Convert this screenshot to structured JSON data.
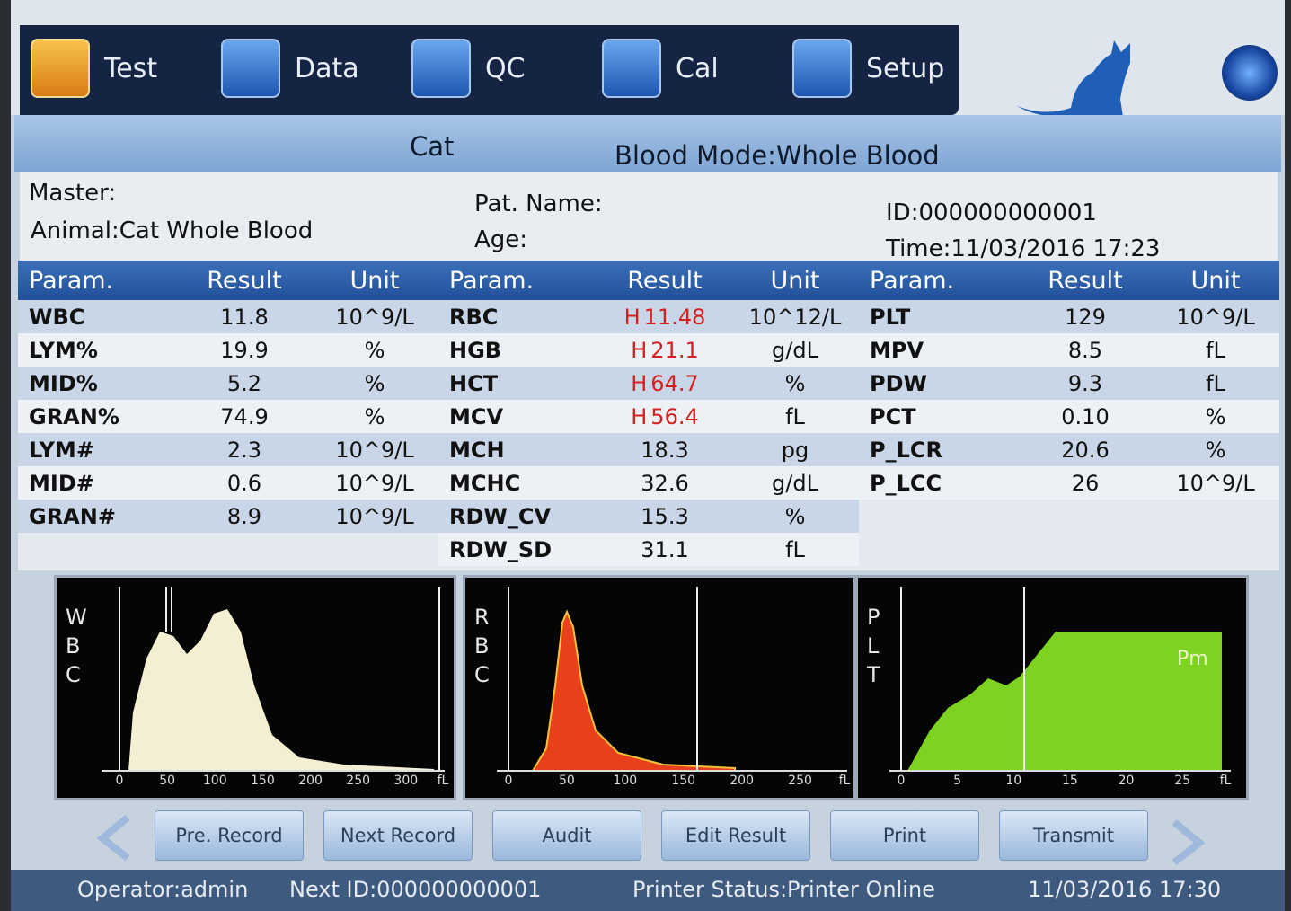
{
  "nav": [
    "Test",
    "Data",
    "QC",
    "Cal",
    "Setup"
  ],
  "header": {
    "species": "Cat",
    "mode": "Blood Mode:Whole Blood"
  },
  "info": {
    "master": "Master:",
    "animal": "Animal:Cat Whole Blood",
    "pat_name": "Pat. Name:",
    "age": "Age:",
    "id": "ID:000000000001",
    "time": "Time:11/03/2016 17:23"
  },
  "table": {
    "columns": [
      "Param.",
      "Result",
      "Unit"
    ],
    "groups": [
      [
        {
          "param": "WBC",
          "result": "11.8",
          "unit": "10^9/L"
        },
        {
          "param": "LYM%",
          "result": "19.9",
          "unit": "%"
        },
        {
          "param": "MID%",
          "result": "5.2",
          "unit": "%"
        },
        {
          "param": "GRAN%",
          "result": "74.9",
          "unit": "%"
        },
        {
          "param": "LYM#",
          "result": "2.3",
          "unit": "10^9/L"
        },
        {
          "param": "MID#",
          "result": "0.6",
          "unit": "10^9/L"
        },
        {
          "param": "GRAN#",
          "result": "8.9",
          "unit": "10^9/L"
        }
      ],
      [
        {
          "param": "RBC",
          "flag": "H",
          "result": "11.48",
          "unit": "10^12/L"
        },
        {
          "param": "HGB",
          "flag": "H",
          "result": "21.1",
          "unit": "g/dL"
        },
        {
          "param": "HCT",
          "flag": "H",
          "result": "64.7",
          "unit": "%"
        },
        {
          "param": "MCV",
          "flag": "H",
          "result": "56.4",
          "unit": "fL"
        },
        {
          "param": "MCH",
          "result": "18.3",
          "unit": "pg"
        },
        {
          "param": "MCHC",
          "result": "32.6",
          "unit": "g/dL"
        },
        {
          "param": "RDW_CV",
          "result": "15.3",
          "unit": "%"
        },
        {
          "param": "RDW_SD",
          "result": "31.1",
          "unit": "fL"
        }
      ],
      [
        {
          "param": "PLT",
          "result": "129",
          "unit": "10^9/L"
        },
        {
          "param": "MPV",
          "result": "8.5",
          "unit": "fL"
        },
        {
          "param": "PDW",
          "result": "9.3",
          "unit": "fL"
        },
        {
          "param": "PCT",
          "result": "0.10",
          "unit": "%"
        },
        {
          "param": "P_LCR",
          "result": "20.6",
          "unit": "%"
        },
        {
          "param": "P_LCC",
          "result": "26",
          "unit": "10^9/L"
        }
      ]
    ]
  },
  "histograms": [
    {
      "label": "WBC",
      "ticks": [
        0,
        50,
        100,
        150,
        200,
        250,
        300
      ],
      "unit": "fL"
    },
    {
      "label": "RBC",
      "ticks": [
        0,
        50,
        100,
        150,
        200,
        250
      ],
      "unit": "fL"
    },
    {
      "label": "PLT",
      "ticks": [
        0,
        5,
        10,
        15,
        20,
        25
      ],
      "unit": "fL",
      "marker": "Pm"
    }
  ],
  "buttons": [
    "Pre. Record",
    "Next Record",
    "Audit",
    "Edit Result",
    "Print",
    "Transmit"
  ],
  "status": {
    "operator": "Operator:admin",
    "next_id": "Next ID:000000000001",
    "printer": "Printer Status:Printer Online",
    "datetime": "11/03/2016 17:30"
  }
}
